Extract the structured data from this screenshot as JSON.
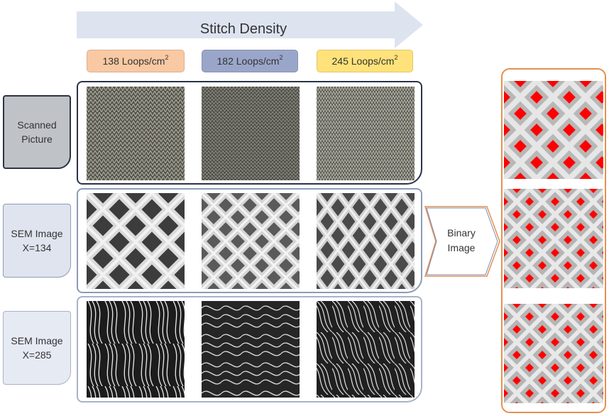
{
  "header": {
    "title": "Stitch Density"
  },
  "densities": [
    {
      "value": "138 Loops/cm",
      "sup": "2",
      "color": "#f9c9a3"
    },
    {
      "value": "182 Loops/cm",
      "sup": "2",
      "color": "#9aa6c9"
    },
    {
      "value": "245 Loops/cm",
      "sup": "2",
      "color": "#ffe27a"
    }
  ],
  "rows": [
    {
      "label_line1": "Scanned",
      "label_line2": "Picture",
      "label_bg": "#bfc2c7",
      "frame_color": "#2b3346"
    },
    {
      "label_line1": "SEM Image",
      "label_line2": "X=134",
      "label_bg": "#dfe4ef",
      "frame_color": "#8e9bb7"
    },
    {
      "label_line1": "SEM Image",
      "label_line2": "X=285",
      "label_bg": "#e6eaf3",
      "frame_color": "#a8b2c8"
    }
  ],
  "binary": {
    "label_line1": "Binary",
    "label_line2": "Image",
    "panel_color": "#e69050",
    "fill_color": "#ff0000"
  },
  "colors": {
    "arrow": "#dde3ef",
    "chevron_stroke": "#7a8cb3"
  }
}
